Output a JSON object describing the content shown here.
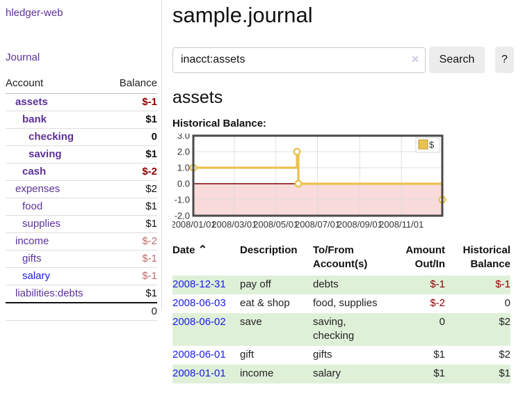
{
  "theme": {
    "purple": "#5c3199",
    "link_blue": "#1a1ae6",
    "neg_strong": "#8b0000",
    "neg_muted": "#bc6c6c",
    "row_green": "#dff0d8",
    "btn_bg": "#ececec",
    "gold": "#e9c24f",
    "gold_dark": "#bb9632",
    "pink_region": "#f9dbdb",
    "zero_line": "#7a0000",
    "chart_border": "#4a4a4a",
    "gridline": "#dcdcdc"
  },
  "sidebar": {
    "app_title": "hledger-web",
    "nav": {
      "journal": "Journal"
    },
    "accounts": {
      "col_account": "Account",
      "col_balance": "Balance",
      "rows": [
        {
          "name": "assets",
          "indent": 1,
          "bold": true,
          "balance": "$-1",
          "balance_style": "neg-strong"
        },
        {
          "name": "bank",
          "indent": 2,
          "bold": true,
          "balance": "$1",
          "balance_style": "pos-strong"
        },
        {
          "name": "checking",
          "indent": 3,
          "bold": true,
          "balance": "0",
          "balance_style": "pos-strong"
        },
        {
          "name": "saving",
          "indent": 3,
          "bold": true,
          "balance": "$1",
          "balance_style": "pos-strong"
        },
        {
          "name": "cash",
          "indent": 2,
          "bold": true,
          "balance": "$-2",
          "balance_style": "neg-strong"
        },
        {
          "name": "expenses",
          "indent": 1,
          "bold": false,
          "balance": "$2",
          "balance_style": "pos"
        },
        {
          "name": "food",
          "indent": 2,
          "bold": false,
          "balance": "$1",
          "balance_style": "pos"
        },
        {
          "name": "supplies",
          "indent": 2,
          "bold": false,
          "balance": "$1",
          "balance_style": "pos"
        },
        {
          "name": "income",
          "indent": 1,
          "bold": false,
          "balance": "$-2",
          "balance_style": "neg-muted"
        },
        {
          "name": "gifts",
          "indent": 2,
          "bold": false,
          "balance": "$-1",
          "balance_style": "neg-muted"
        },
        {
          "name": "salary",
          "indent": 2,
          "bold": false,
          "blue": true,
          "balance": "$-1",
          "balance_style": "neg-muted"
        },
        {
          "name": "liabilities:debts",
          "indent": 1,
          "bold": false,
          "balance": "$1",
          "balance_style": "pos"
        }
      ],
      "total": "0"
    }
  },
  "main": {
    "title": "sample.journal",
    "search": {
      "value": "inacct:assets",
      "clear_icon": "✕",
      "button": "Search",
      "help": "?"
    },
    "register": {
      "heading": "assets"
    }
  },
  "chart_data": {
    "type": "line",
    "title": "Historical Balance:",
    "series": [
      {
        "name": "$",
        "color": "#e9c24f",
        "step": true,
        "points": [
          [
            "2008-01-01",
            1
          ],
          [
            "2008-06-01",
            2
          ],
          [
            "2008-06-03",
            0
          ],
          [
            "2008-12-31",
            -1
          ]
        ]
      }
    ],
    "x_range": [
      "2008-01-01",
      "2008-12-31"
    ],
    "ylim": [
      -2,
      3
    ],
    "y_ticks": [
      "3.0",
      "2.0",
      "1.0",
      "0.0",
      "-1.0",
      "-2.0"
    ],
    "x_ticks": [
      "2008/01/01",
      "2008/03/01",
      "2008/05/01",
      "2008/07/01",
      "2008/09/01",
      "2008/11/01"
    ],
    "grid": true,
    "negative_region_fill": "#f9dbdb",
    "zero_line_color": "#7a0000",
    "legend_position": "top-right",
    "legend_label": "$"
  },
  "transactions": {
    "headers": {
      "date": "Date",
      "sort_icon": "⌃",
      "description": "Description",
      "account": "To/From Account(s)",
      "amount": "Amount Out/In",
      "balance": "Historical Balance"
    },
    "rows": [
      {
        "date": "2008-12-31",
        "description": "pay off",
        "account": "debts",
        "amount": "$-1",
        "amount_neg": true,
        "balance": "$-1",
        "balance_neg": true,
        "shaded": true
      },
      {
        "date": "2008-06-03",
        "description": "eat & shop",
        "account": "food, supplies",
        "amount": "$-2",
        "amount_neg": true,
        "balance": "0",
        "balance_neg": false,
        "shaded": false
      },
      {
        "date": "2008-06-02",
        "description": "save",
        "account": "saving, checking",
        "amount": "0",
        "amount_neg": false,
        "balance": "$2",
        "balance_neg": false,
        "shaded": true
      },
      {
        "date": "2008-06-01",
        "description": "gift",
        "account": "gifts",
        "amount": "$1",
        "amount_neg": false,
        "balance": "$2",
        "balance_neg": false,
        "shaded": false
      },
      {
        "date": "2008-01-01",
        "description": "income",
        "account": "salary",
        "amount": "$1",
        "amount_neg": false,
        "balance": "$1",
        "balance_neg": false,
        "shaded": true
      }
    ]
  }
}
